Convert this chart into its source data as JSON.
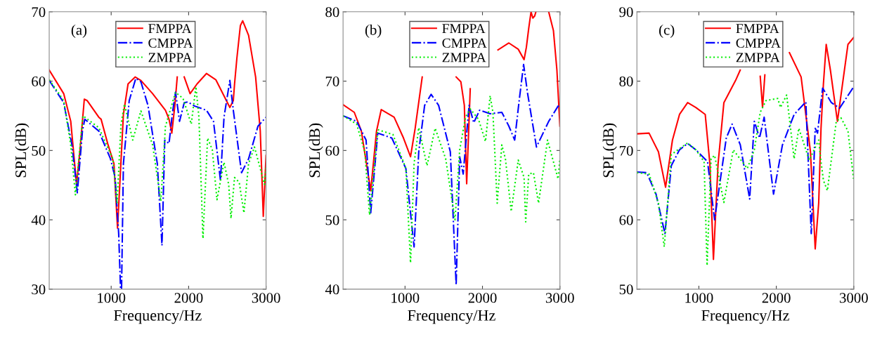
{
  "chart_data": [
    {
      "type": "line",
      "xlabel": "Frequency/Hz",
      "ylabel": "SPL(dB)",
      "annotations": [
        "(a)"
      ],
      "xlim": [
        200,
        3000
      ],
      "xticks": [
        1000,
        2000,
        3000
      ],
      "ylim": [
        30,
        70
      ],
      "yticks": [
        30,
        40,
        50,
        60,
        70
      ],
      "grid": false,
      "legend": "top",
      "series": [
        {
          "name": "FMPPA",
          "color": "#ff0000",
          "line_style": "solid",
          "x": [
            200,
            387,
            478,
            553,
            598,
            653,
            689,
            840,
            870,
            960,
            1036,
            1082,
            1158,
            1218,
            1309,
            1384,
            1535,
            1701,
            1747,
            1783,
            1822,
            1853,
            1868,
            1898,
            1943,
            2019,
            2109,
            2230,
            2351,
            2532,
            2577,
            2593,
            2623,
            2668,
            2698,
            2774,
            2865,
            2925,
            2964,
            3000
          ],
          "values": [
            61.6,
            58.2,
            54.2,
            45.1,
            50.1,
            57.4,
            57.2,
            54.8,
            54.5,
            50.8,
            48.1,
            38.8,
            55.2,
            59.6,
            60.6,
            60.1,
            58.2,
            55.8,
            54.5,
            52.5,
            56.5,
            60.6,
            null,
            null,
            60.6,
            58.2,
            59.6,
            61.1,
            60.2,
            56.2,
            57.2,
            59.6,
            63.3,
            68.0,
            68.7,
            66.6,
            60.6,
            52.8,
            40.5,
            49.3
          ]
        },
        {
          "name": "CMPPA",
          "color": "#0000ff",
          "line_style": "dashdot",
          "x": [
            200,
            387,
            493,
            563,
            629,
            659,
            840,
            991,
            1051,
            1097,
            1121,
            1134,
            1158,
            1233,
            1318,
            1384,
            1475,
            1596,
            1656,
            1692,
            1747,
            1792,
            1831,
            1883,
            1943,
            1989,
            2079,
            2230,
            2321,
            2411,
            2457,
            2532,
            2577,
            2683,
            2774,
            2895,
            3000
          ],
          "values": [
            60.1,
            56.9,
            50.8,
            43.9,
            52.8,
            54.5,
            52.8,
            48.8,
            46.1,
            38.0,
            30,
            30,
            48.1,
            57.2,
            60.4,
            59.9,
            56.5,
            48.1,
            36.3,
            51.5,
            51.0,
            55.5,
            58.4,
            54.2,
            56.9,
            57.0,
            56.4,
            55.8,
            54.2,
            45.7,
            54.8,
            60.1,
            55.8,
            46.8,
            48.8,
            53.5,
            54.8
          ]
        },
        {
          "name": "ZMPPA",
          "color": "#00ee00",
          "line_style": "dotted",
          "x": [
            200,
            387,
            478,
            538,
            635,
            840,
            1021,
            1076,
            1127,
            1172,
            1278,
            1384,
            1535,
            1641,
            1701,
            1831,
            1928,
            2034,
            2094,
            2133,
            2185,
            2245,
            2306,
            2366,
            2457,
            2517,
            2547,
            2593,
            2653,
            2714,
            2774,
            2850,
            2980,
            3000
          ],
          "values": [
            60.2,
            57.2,
            50.8,
            43.6,
            55.0,
            53.3,
            48.8,
            42.4,
            53.8,
            56.7,
            51.5,
            55.7,
            50.8,
            42.7,
            53.5,
            58.4,
            57.5,
            53.8,
            59.2,
            54.8,
            37.3,
            51.8,
            50.1,
            42.9,
            48.3,
            45.1,
            40.2,
            46.1,
            45.4,
            41.0,
            48.1,
            50.5,
            45.1,
            47.6
          ]
        }
      ]
    },
    {
      "type": "line",
      "xlabel": "Frequency/Hz",
      "ylabel": "SPL(dB)",
      "annotations": [
        "(b)"
      ],
      "xlim": [
        200,
        3000
      ],
      "xticks": [
        1000,
        2000,
        3000
      ],
      "ylim": [
        40,
        80
      ],
      "yticks": [
        40,
        50,
        60,
        70,
        80
      ],
      "grid": false,
      "legend": "top",
      "series": [
        {
          "name": "FMPPA",
          "color": "#ff0000",
          "line_style": "solid",
          "x": [
            200,
            345,
            436,
            557,
            632,
            693,
            859,
            980,
            1071,
            1131,
            1222,
            1450,
            1660,
            1721,
            1766,
            1796,
            1842,
            2000,
            2200,
            2341,
            2462,
            2537,
            2567,
            2597,
            2627,
            2650,
            2674,
            2690,
            2750,
            2855,
            2916,
            2961,
            3000
          ],
          "values": [
            66.6,
            65.5,
            62.8,
            54.2,
            62.8,
            65.9,
            64.8,
            61.8,
            59.1,
            63.2,
            70.6,
            null,
            70.6,
            69.9,
            66.5,
            55.2,
            68.9,
            null,
            74.5,
            75.5,
            74.6,
            73.1,
            74.9,
            77.6,
            80,
            79.1,
            79.4,
            80,
            null,
            80,
            77.3,
            71.6,
            63.5
          ]
        },
        {
          "name": "CMPPA",
          "color": "#0000ff",
          "line_style": "dashdot",
          "x": [
            200,
            375,
            497,
            557,
            648,
            829,
            1011,
            1117,
            1177,
            1253,
            1337,
            1434,
            1585,
            1660,
            1706,
            1751,
            1827,
            1887,
            1963,
            2099,
            2250,
            2341,
            2416,
            2477,
            2531,
            2583,
            2697,
            2855,
            2976,
            3000
          ],
          "values": [
            65.0,
            64.2,
            61.5,
            51.0,
            62.5,
            61.8,
            57.4,
            46.1,
            59.8,
            66.5,
            68.1,
            66.5,
            59.8,
            40.6,
            59.1,
            56.6,
            66.5,
            64.0,
            65.8,
            65.3,
            65.5,
            63.5,
            61.5,
            67.5,
            72.4,
            68.2,
            60.5,
            64.2,
            66.4,
            66.2
          ]
        },
        {
          "name": "ZMPPA",
          "color": "#00ee00",
          "line_style": "dotted",
          "x": [
            200,
            375,
            481,
            542,
            648,
            844,
            1011,
            1071,
            1117,
            1177,
            1284,
            1389,
            1525,
            1645,
            1706,
            1781,
            1842,
            1948,
            2039,
            2099,
            2135,
            2190,
            2250,
            2296,
            2371,
            2462,
            2537,
            2558,
            2597,
            2658,
            2724,
            2840,
            2976,
            3000
          ],
          "values": [
            65.0,
            63.8,
            59.8,
            50.7,
            63.0,
            62.3,
            57.4,
            43.8,
            58.1,
            63.3,
            57.8,
            63.2,
            58.8,
            50.0,
            60.1,
            64.8,
            66.0,
            64.5,
            61.3,
            67.9,
            65.5,
            52.4,
            60.8,
            58.8,
            51.2,
            58.6,
            56.1,
            49.7,
            56.6,
            56.8,
            52.4,
            61.5,
            55.9,
            58.8
          ]
        }
      ]
    },
    {
      "type": "line",
      "xlabel": "Frequency/Hz",
      "ylabel": "SPL(dB)",
      "annotations": [
        "(c)"
      ],
      "xlim": [
        200,
        3000
      ],
      "xticks": [
        1000,
        2000,
        3000
      ],
      "ylim": [
        50,
        90
      ],
      "yticks": [
        50,
        60,
        70,
        80,
        90
      ],
      "grid": false,
      "legend": "top",
      "series": [
        {
          "name": "FMPPA",
          "color": "#ff0000",
          "line_style": "solid",
          "x": [
            200,
            357,
            478,
            570,
            659,
            750,
            855,
            961,
            1082,
            1142,
            1188,
            1248,
            1323,
            1474,
            1534,
            1650,
            1792,
            1822,
            1852,
            2000,
            2169,
            2320,
            2441,
            2502,
            2547,
            2577,
            2608,
            2644,
            2698,
            2789,
            2850,
            2925,
            3000
          ],
          "values": [
            72.4,
            72.5,
            69.8,
            64.7,
            71.5,
            75.2,
            76.9,
            76.2,
            75.2,
            68.1,
            54.3,
            68.1,
            76.9,
            80.1,
            81.6,
            null,
            80.7,
            76.2,
            80.9,
            null,
            84.1,
            80.6,
            69.8,
            55.8,
            62.4,
            73.2,
            79.6,
            85.3,
            81.6,
            74.2,
            79.2,
            85.3,
            86.3
          ]
        },
        {
          "name": "CMPPA",
          "color": "#0000ff",
          "line_style": "dashdot",
          "x": [
            200,
            327,
            447,
            562,
            644,
            750,
            855,
            961,
            1112,
            1203,
            1263,
            1354,
            1429,
            1535,
            1656,
            1716,
            1783,
            1843,
            1964,
            2079,
            2230,
            2381,
            2451,
            2502,
            2532,
            2598,
            2711,
            2817,
            3000
          ],
          "values": [
            66.9,
            66.8,
            63.7,
            58.0,
            67.8,
            70.1,
            71.0,
            70.1,
            68.4,
            60.0,
            64.7,
            71.8,
            73.8,
            70.8,
            63.0,
            74.2,
            71.8,
            74.8,
            63.7,
            70.8,
            75.2,
            77.0,
            58.0,
            73.2,
            72.5,
            79.0,
            76.9,
            76.1,
            79.2
          ]
        },
        {
          "name": "ZMPPA",
          "color": "#00ee00",
          "line_style": "dotted",
          "x": [
            200,
            357,
            478,
            553,
            644,
            855,
            961,
            1067,
            1106,
            1157,
            1203,
            1323,
            1444,
            1625,
            1716,
            1792,
            1867,
            2018,
            2054,
            2133,
            2230,
            2290,
            2426,
            2547,
            2577,
            2608,
            2659,
            2774,
            2835,
            2925,
            3000
          ],
          "values": [
            66.8,
            66.6,
            62.4,
            56.1,
            69.4,
            71.1,
            70.1,
            68.4,
            53.4,
            68.8,
            69.3,
            62.5,
            70.1,
            67.4,
            70.1,
            75.5,
            77.2,
            77.5,
            76.2,
            78.0,
            68.8,
            73.2,
            68.6,
            71.5,
            68.4,
            65.7,
            64.2,
            74.2,
            74.7,
            72.8,
            65.7
          ]
        }
      ]
    }
  ]
}
